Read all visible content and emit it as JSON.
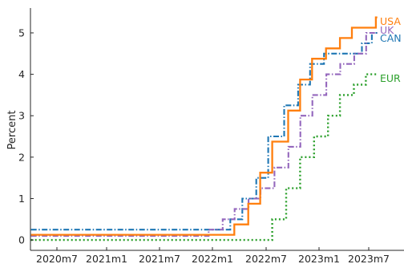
{
  "chart_data": {
    "type": "line",
    "step": true,
    "ylabel": "Percent",
    "xlabel": "",
    "ylim": [
      -0.25,
      5.6
    ],
    "xlim": [
      "2020-04-01",
      "2023-09-01"
    ],
    "yticks": [
      0,
      1,
      2,
      3,
      4,
      5
    ],
    "xticks": [
      "2020m7",
      "2021m1",
      "2021m7",
      "2022m1",
      "2022m7",
      "2023m1",
      "2023m7"
    ],
    "grid": false,
    "legend": "series names labeled at right end of each line",
    "series": [
      {
        "name": "USA",
        "color": "#ff7f0e",
        "style": "solid",
        "points": [
          [
            "2020-04-01",
            0.125
          ],
          [
            "2022-03-16",
            0.375
          ],
          [
            "2022-05-04",
            0.875
          ],
          [
            "2022-06-15",
            1.625
          ],
          [
            "2022-07-27",
            2.375
          ],
          [
            "2022-09-21",
            3.125
          ],
          [
            "2022-11-02",
            3.875
          ],
          [
            "2022-12-14",
            4.375
          ],
          [
            "2023-02-01",
            4.625
          ],
          [
            "2023-03-22",
            4.875
          ],
          [
            "2023-05-03",
            5.125
          ],
          [
            "2023-07-26",
            5.375
          ],
          [
            "2023-07-31",
            5.375
          ]
        ]
      },
      {
        "name": "UK",
        "color": "#9467bd",
        "style": "dashdot",
        "points": [
          [
            "2020-04-01",
            0.1
          ],
          [
            "2021-12-16",
            0.25
          ],
          [
            "2022-02-03",
            0.5
          ],
          [
            "2022-03-17",
            0.75
          ],
          [
            "2022-05-05",
            1.0
          ],
          [
            "2022-06-16",
            1.25
          ],
          [
            "2022-08-04",
            1.75
          ],
          [
            "2022-09-22",
            2.25
          ],
          [
            "2022-11-03",
            3.0
          ],
          [
            "2022-12-15",
            3.5
          ],
          [
            "2023-02-02",
            4.0
          ],
          [
            "2023-03-23",
            4.25
          ],
          [
            "2023-05-11",
            4.5
          ],
          [
            "2023-06-22",
            5.0
          ],
          [
            "2023-07-31",
            5.0
          ]
        ]
      },
      {
        "name": "CAN",
        "color": "#1f77b4",
        "style": "dashdot",
        "points": [
          [
            "2020-04-01",
            0.25
          ],
          [
            "2022-03-02",
            0.5
          ],
          [
            "2022-04-13",
            1.0
          ],
          [
            "2022-06-01",
            1.5
          ],
          [
            "2022-07-13",
            2.5
          ],
          [
            "2022-09-07",
            3.25
          ],
          [
            "2022-10-26",
            3.75
          ],
          [
            "2022-12-07",
            4.25
          ],
          [
            "2023-01-25",
            4.5
          ],
          [
            "2023-06-07",
            4.75
          ],
          [
            "2023-07-12",
            5.0
          ],
          [
            "2023-07-31",
            5.0
          ]
        ]
      },
      {
        "name": "EUR",
        "color": "#2ca02c",
        "style": "dotted",
        "points": [
          [
            "2020-04-01",
            0.0
          ],
          [
            "2022-07-27",
            0.5
          ],
          [
            "2022-09-14",
            1.25
          ],
          [
            "2022-11-02",
            2.0
          ],
          [
            "2022-12-21",
            2.5
          ],
          [
            "2023-02-08",
            3.0
          ],
          [
            "2023-03-22",
            3.5
          ],
          [
            "2023-05-10",
            3.75
          ],
          [
            "2023-06-21",
            4.0
          ],
          [
            "2023-07-31",
            4.0
          ]
        ]
      }
    ]
  }
}
